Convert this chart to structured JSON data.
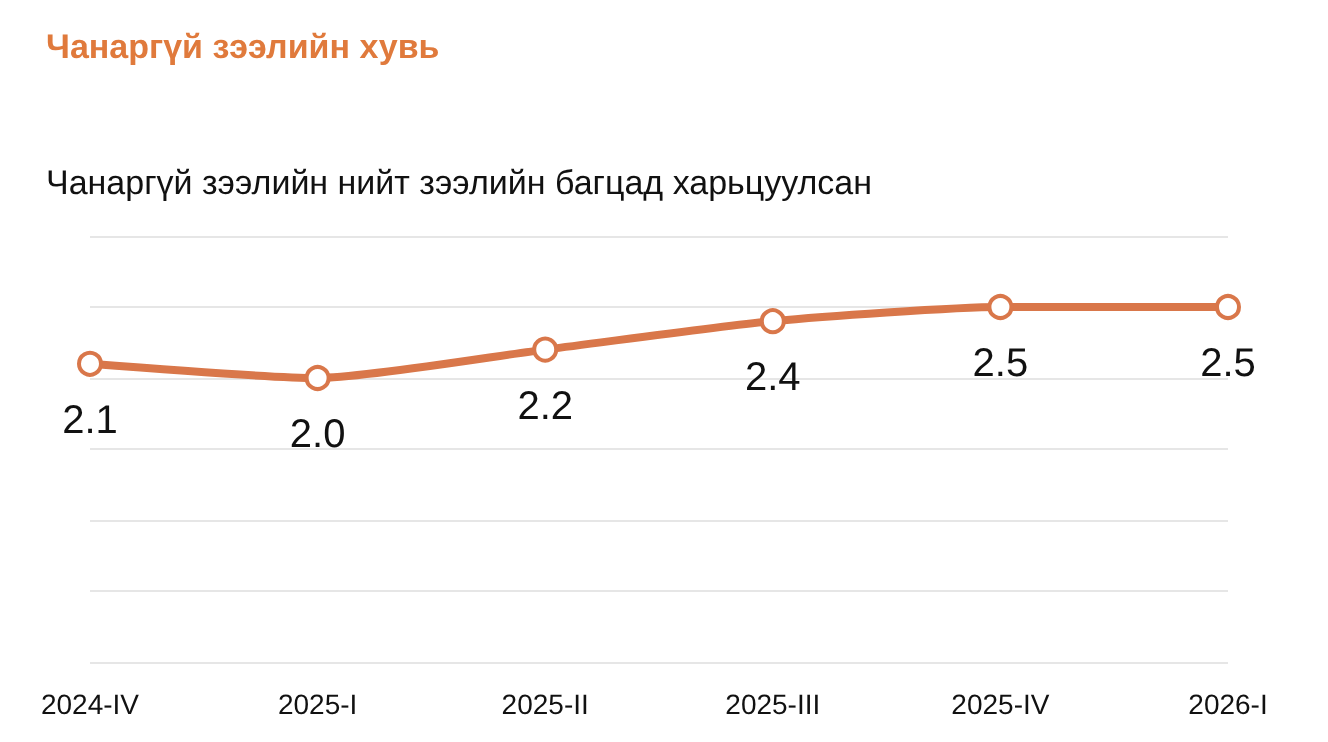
{
  "chart_data": {
    "type": "line",
    "title": "Чанаргүй зээлийн хувь",
    "subtitle": "Чанаргүй зээлийн нийт зээлийн багцад харьцуулсан",
    "categories": [
      "2024-IV",
      "2025-I",
      "2025-II",
      "2025-III",
      "2025-IV",
      "2026-I"
    ],
    "series": [
      {
        "color": "#d9774a",
        "values": [
          2.1,
          2.0,
          2.2,
          2.4,
          2.5,
          2.5
        ],
        "value_labels": [
          "2.1",
          "2.0",
          "2.2",
          "2.4",
          "2.5",
          "2.5"
        ]
      }
    ],
    "ylim": [
      0,
      3
    ],
    "yticks": [
      0,
      0.5,
      1,
      1.5,
      2,
      2.5,
      3
    ],
    "tick_labels": "x",
    "grid": "y",
    "marker": "circle",
    "line_style": "solid"
  }
}
